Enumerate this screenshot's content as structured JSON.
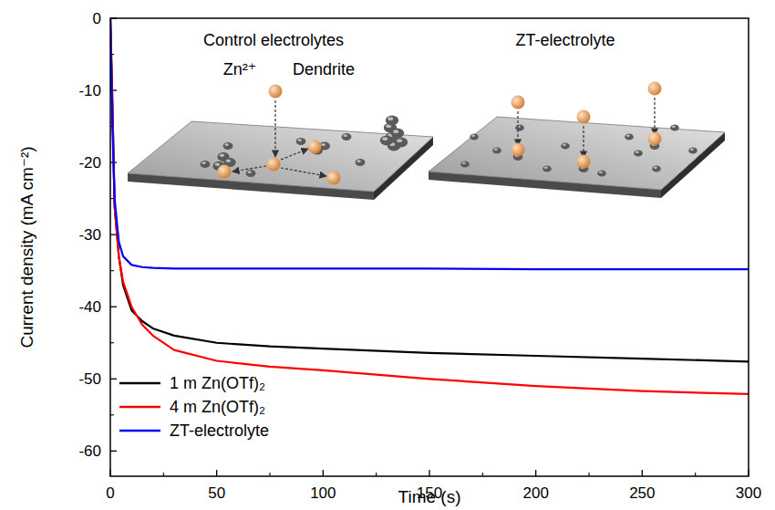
{
  "chart_data": {
    "type": "line",
    "x_label": "Time (s)",
    "y_label": "Current density (mA cm⁻²)",
    "x": [
      0,
      1,
      2,
      4,
      6,
      10,
      15,
      20,
      30,
      50,
      75,
      100,
      150,
      200,
      250,
      300
    ],
    "series": [
      {
        "name": "1 m Zn(OTf)₂",
        "color": "#000000",
        "line_style": "solid",
        "values": [
          0,
          -12,
          -26,
          -33,
          -37,
          -40.5,
          -42,
          -43,
          -44,
          -45,
          -45.5,
          -45.8,
          -46.4,
          -46.8,
          -47.2,
          -47.6
        ]
      },
      {
        "name": "4 m Zn(OTf)₂",
        "color": "#ff0000",
        "line_style": "solid",
        "values": [
          0,
          -12,
          -26,
          -33,
          -36.5,
          -40,
          -42.5,
          -44,
          -46,
          -47.5,
          -48.3,
          -48.8,
          -50,
          -51,
          -51.7,
          -52.1
        ]
      },
      {
        "name": "ZT-electrolyte",
        "color": "#0000ff",
        "line_style": "solid",
        "values": [
          0,
          -15,
          -25,
          -31,
          -33,
          -34.2,
          -34.5,
          -34.6,
          -34.7,
          -34.7,
          -34.7,
          -34.7,
          -34.7,
          -34.8,
          -34.8,
          -34.8
        ]
      }
    ],
    "xlim": [
      0,
      300
    ],
    "xticks": [
      0,
      50,
      100,
      150,
      200,
      250,
      300
    ],
    "ylim": [
      -63.5,
      0
    ],
    "yticks": [
      -60,
      -50,
      -40,
      -30,
      -20,
      -10,
      0
    ],
    "grid": false,
    "legend": "lower left",
    "annotations": [
      "Control electrolytes",
      "ZT-electrolyte",
      "Zn²⁺",
      "Dendrite"
    ]
  }
}
